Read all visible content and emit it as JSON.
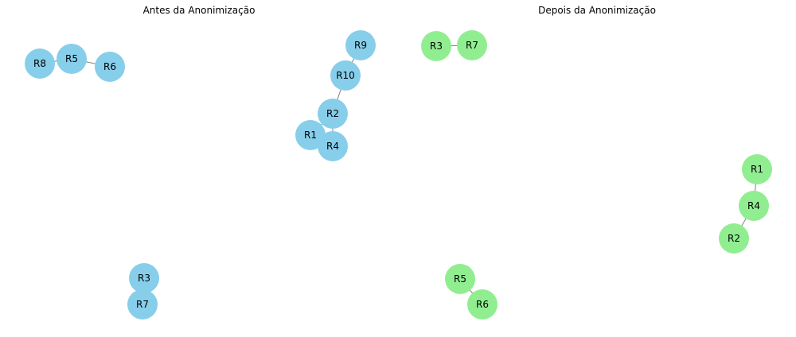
{
  "panels": [
    {
      "title": "Antes da Anonimização",
      "node_color": "#87CEEB",
      "nodes": [
        "R8",
        "R5",
        "R6",
        "R9",
        "R10",
        "R2",
        "R1",
        "R4",
        "R3",
        "R7"
      ],
      "edges": [
        [
          "R8",
          "R5"
        ],
        [
          "R5",
          "R6"
        ],
        [
          "R9",
          "R10"
        ],
        [
          "R10",
          "R2"
        ],
        [
          "R2",
          "R1"
        ],
        [
          "R2",
          "R4"
        ],
        [
          "R1",
          "R4"
        ],
        [
          "R3",
          "R7"
        ]
      ]
    },
    {
      "title": "Depois da Anonimização",
      "node_color": "#90EE90",
      "nodes": [
        "R3",
        "R7",
        "R1",
        "R4",
        "R2",
        "R5",
        "R6"
      ],
      "edges": [
        [
          "R3",
          "R7"
        ],
        [
          "R1",
          "R4"
        ],
        [
          "R4",
          "R2"
        ],
        [
          "R5",
          "R6"
        ]
      ]
    }
  ]
}
